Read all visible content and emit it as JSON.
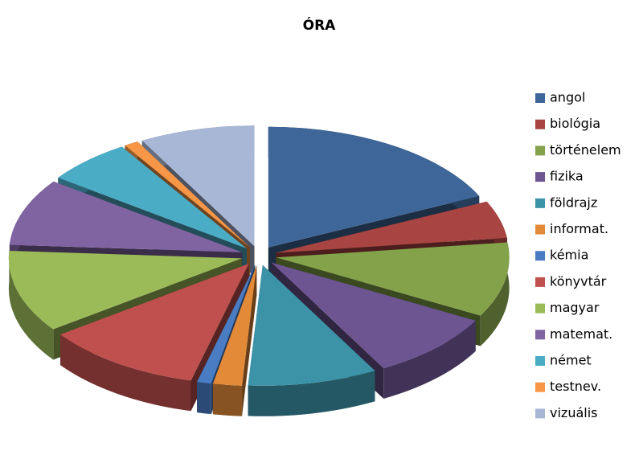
{
  "chart_data": {
    "type": "pie",
    "title": "ÓRA",
    "categories": [
      "angol",
      "biológia",
      "történelem",
      "fizika",
      "földrajz",
      "informat.",
      "kémia",
      "könyvtár",
      "magyar",
      "matemat.",
      "német",
      "testnev.",
      "vizuális"
    ],
    "values": [
      18,
      5,
      10,
      9,
      9,
      2,
      1,
      11,
      11,
      9,
      6,
      1,
      8
    ],
    "colors": [
      "#3f6698",
      "#a84442",
      "#84a24a",
      "#6d5591",
      "#3c93a8",
      "#e38a38",
      "#4a7cc4",
      "#c0504d",
      "#9bbb59",
      "#8064a2",
      "#4bacc6",
      "#f79646",
      "#a8b7d6"
    ],
    "legend": "right"
  }
}
